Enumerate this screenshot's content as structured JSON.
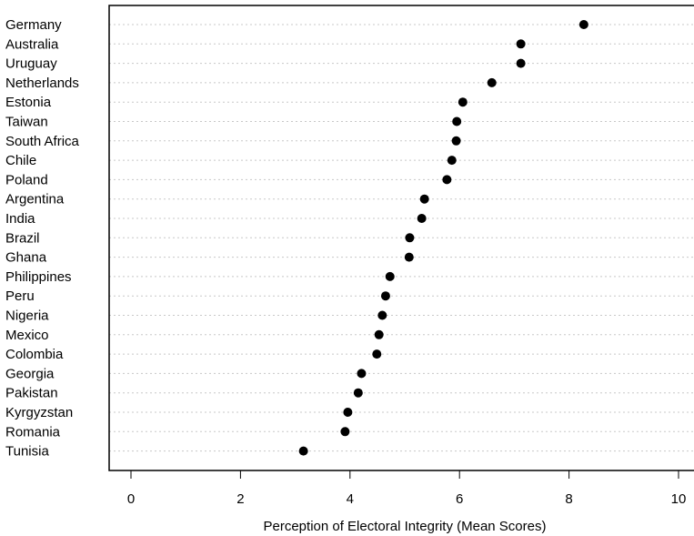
{
  "chart_data": {
    "type": "scatter",
    "style": "dot-plot",
    "xlabel": "Perception of Electoral Integrity (Mean Scores)",
    "ylabel": "",
    "xlim": [
      -0.4,
      10.3
    ],
    "xticks": [
      0,
      2,
      4,
      6,
      8,
      10
    ],
    "grid": "horizontal dotted",
    "categories": [
      "Germany",
      "Australia",
      "Uruguay",
      "Netherlands",
      "Estonia",
      "Taiwan",
      "South Africa",
      "Chile",
      "Poland",
      "Argentina",
      "India",
      "Brazil",
      "Ghana",
      "Philippines",
      "Peru",
      "Nigeria",
      "Mexico",
      "Colombia",
      "Georgia",
      "Pakistan",
      "Kyrgyzstan",
      "Romania",
      "Tunisia"
    ],
    "values": [
      8.27,
      7.12,
      7.12,
      6.59,
      6.06,
      5.95,
      5.94,
      5.86,
      5.77,
      5.36,
      5.31,
      5.09,
      5.08,
      4.73,
      4.65,
      4.59,
      4.53,
      4.49,
      4.21,
      4.15,
      3.96,
      3.91,
      3.15
    ],
    "colors": {
      "point": "#000000",
      "grid": "#c8c8c8"
    }
  }
}
